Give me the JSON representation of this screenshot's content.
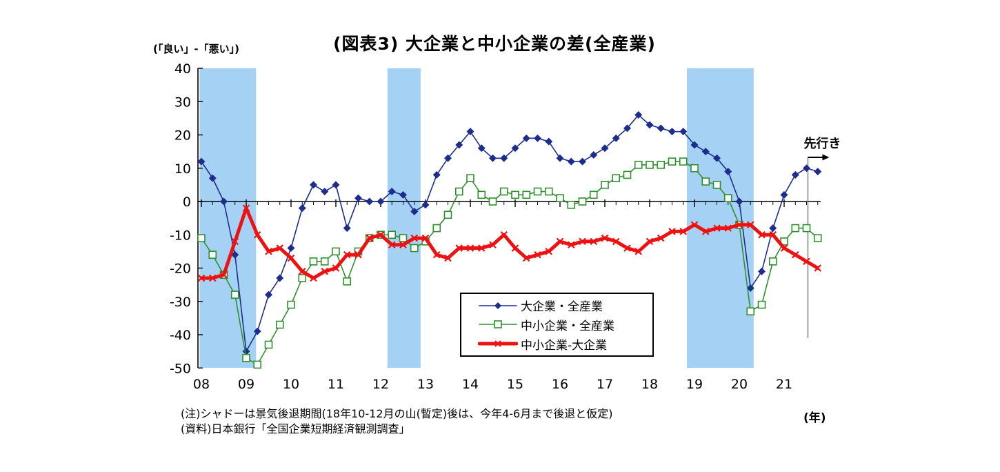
{
  "title": "(図表3) 大企業と中小企業の差(全産業)",
  "y_axis_unit_label": "(「良い」-「悪い」)",
  "x_axis_unit_label": "(年)",
  "forecast_label": "先行き",
  "notes": [
    "(注)シャドーは景気後退期間(18年10-12月の山(暫定)後は、今年4-6月まで後退と仮定)",
    "(資料)日本銀行「全国企業短期経済観測調査」"
  ],
  "chart_data": {
    "type": "line",
    "title": "(図表3) 大企業と中小企業の差(全産業)",
    "x_unit": "year, quarterly points starting 2008Q1; last point is the forecast (先行き)",
    "x_labels": [
      "08",
      "09",
      "10",
      "11",
      "12",
      "13",
      "14",
      "15",
      "16",
      "17",
      "18",
      "19",
      "20",
      "21"
    ],
    "ylim": [
      -50,
      40
    ],
    "y_ticks": [
      40,
      30,
      20,
      10,
      0,
      -10,
      -20,
      -30,
      -40,
      -50
    ],
    "grid": false,
    "legend_position": "inside-lower-center-box",
    "band_color": "#a5d2f4",
    "axis_color": "#000000",
    "separator_color": "#808080",
    "recession_bands_years": [
      [
        2007.96,
        2009.22
      ],
      [
        2012.15,
        2012.89
      ],
      [
        2018.83,
        2020.32
      ]
    ],
    "forecast_boundary_year": 2021.53,
    "series": [
      {
        "name": "大企業・全産業",
        "color": "#1c2d8c",
        "marker": "diamond",
        "line_width": 1.6,
        "values": [
          12,
          7,
          0,
          -16,
          -45,
          -39,
          -28,
          -23,
          -14,
          -2,
          5,
          3,
          5,
          -8,
          1,
          0,
          0,
          3,
          2,
          -3,
          -1,
          8,
          13,
          17,
          21,
          16,
          13,
          13,
          16,
          19,
          19,
          18,
          13,
          12,
          12,
          14,
          16,
          19,
          22,
          26,
          23,
          22,
          21,
          21,
          17,
          15,
          13,
          9,
          0,
          -26,
          -21,
          -8,
          2,
          8,
          10,
          9
        ]
      },
      {
        "name": "中小企業・全産業",
        "color": "#2e8f2e",
        "marker": "open-square",
        "line_width": 1.6,
        "values": [
          -11,
          -16,
          -22,
          -28,
          -47,
          -49,
          -43,
          -37,
          -31,
          -23,
          -18,
          -18,
          -15,
          -24,
          -15,
          -11,
          -10,
          -10,
          -11,
          -14,
          -12,
          -8,
          -4,
          3,
          7,
          2,
          0,
          3,
          2,
          2,
          3,
          3,
          1,
          -1,
          0,
          2,
          5,
          7,
          8,
          11,
          11,
          11,
          12,
          12,
          10,
          6,
          5,
          1,
          -7,
          -33,
          -31,
          -18,
          -12,
          -8,
          -8,
          -11
        ]
      },
      {
        "name": "中小企業-大企業",
        "color": "#ee1111",
        "marker": "x",
        "line_width": 5,
        "values": [
          -23,
          -23,
          -22,
          -12,
          -2,
          -10,
          -15,
          -14,
          -17,
          -21,
          -23,
          -21,
          -20,
          -16,
          -16,
          -11,
          -10,
          -13,
          -13,
          -11,
          -11,
          -16,
          -17,
          -14,
          -14,
          -14,
          -13,
          -10,
          -14,
          -17,
          -16,
          -15,
          -12,
          -13,
          -12,
          -12,
          -11,
          -12,
          -14,
          -15,
          -12,
          -11,
          -9,
          -9,
          -7,
          -9,
          -8,
          -8,
          -7,
          -7,
          -10,
          -10,
          -14,
          -16,
          -18,
          -20
        ]
      }
    ]
  }
}
